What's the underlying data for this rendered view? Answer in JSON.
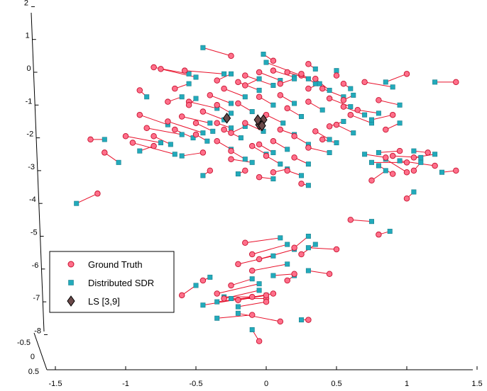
{
  "chart_data": {
    "type": "scatter",
    "projection": "3d",
    "x_ticks": [
      "-1.5",
      "-1",
      "-0.5",
      "0",
      "0.5",
      "1",
      "1.5"
    ],
    "y_ticks": [
      "-0.5",
      "0",
      "0.5"
    ],
    "z_ticks": [
      "2",
      "1",
      "0",
      "-1",
      "-2",
      "-3",
      "-4",
      "-5",
      "-6",
      "-7",
      "-8"
    ],
    "xlim": [
      -1.5,
      1.5
    ],
    "ylim": [
      -0.5,
      0.5
    ],
    "zlim": [
      -8,
      2
    ],
    "grid": false,
    "legend_position": "lower-left",
    "series": [
      {
        "name": "Ground Truth",
        "marker": "circle",
        "color": "#ff6f8a",
        "edge": "#c8102e"
      },
      {
        "name": "Distributed SDR",
        "marker": "square",
        "color": "#22aabb",
        "edge": "#1a7f8c"
      },
      {
        "name": "LS [3,9]",
        "marker": "diamond",
        "color": "#6b4a4a",
        "edge": "#000000"
      }
    ],
    "ls_points": [
      [
        -0.28,
        -1.4
      ],
      [
        -0.05,
        -1.6
      ],
      [
        -0.02,
        -1.45
      ],
      [
        -0.03,
        -1.63
      ],
      [
        -0.06,
        -1.45
      ]
    ],
    "pairs": [
      {
        "gt": [
          -0.75,
          0.1
        ],
        "sdr": [
          -0.5,
          -0.15
        ]
      },
      {
        "gt": [
          -0.58,
          0.05
        ],
        "sdr": [
          -0.3,
          -0.05
        ]
      },
      {
        "gt": [
          -0.8,
          0.15
        ],
        "sdr": [
          -0.55,
          -0.05
        ]
      },
      {
        "gt": [
          -0.25,
          0.5
        ],
        "sdr": [
          -0.45,
          0.75
        ]
      },
      {
        "gt": [
          0.25,
          -0.1
        ],
        "sdr": [
          0.0,
          0.3
        ]
      },
      {
        "gt": [
          -1.15,
          -2.45
        ],
        "sdr": [
          -1.05,
          -2.75
        ]
      },
      {
        "gt": [
          -1.25,
          -2.05
        ],
        "sdr": [
          -1.15,
          -2.05
        ]
      },
      {
        "gt": [
          -1.2,
          -3.7
        ],
        "sdr": [
          -1.35,
          -4.0
        ]
      },
      {
        "gt": [
          -0.95,
          -2.15
        ],
        "sdr": [
          -0.65,
          -2.5
        ]
      },
      {
        "gt": [
          -1.0,
          -1.95
        ],
        "sdr": [
          -0.75,
          -2.15
        ]
      },
      {
        "gt": [
          -0.85,
          -1.7
        ],
        "sdr": [
          -0.6,
          -1.9
        ]
      },
      {
        "gt": [
          -0.7,
          -1.5
        ],
        "sdr": [
          -0.45,
          -1.85
        ]
      },
      {
        "gt": [
          -0.6,
          -1.35
        ],
        "sdr": [
          -0.4,
          -1.55
        ]
      },
      {
        "gt": [
          -0.45,
          -1.2
        ],
        "sdr": [
          -0.3,
          -1.45
        ]
      },
      {
        "gt": [
          -0.9,
          -1.3
        ],
        "sdr": [
          -0.7,
          -1.6
        ]
      },
      {
        "gt": [
          -0.55,
          -0.9
        ],
        "sdr": [
          -0.35,
          -1.1
        ]
      },
      {
        "gt": [
          -0.4,
          -0.7
        ],
        "sdr": [
          -0.25,
          -0.95
        ]
      },
      {
        "gt": [
          -0.3,
          -0.5
        ],
        "sdr": [
          -0.15,
          -0.75
        ]
      },
      {
        "gt": [
          -0.2,
          -0.3
        ],
        "sdr": [
          -0.05,
          -0.55
        ]
      },
      {
        "gt": [
          -0.15,
          -0.1
        ],
        "sdr": [
          0.05,
          -0.4
        ]
      },
      {
        "gt": [
          -0.05,
          0.0
        ],
        "sdr": [
          0.1,
          -0.25
        ]
      },
      {
        "gt": [
          0.05,
          0.05
        ],
        "sdr": [
          0.2,
          -0.15
        ]
      },
      {
        "gt": [
          0.15,
          0.0
        ],
        "sdr": [
          0.3,
          -0.2
        ]
      },
      {
        "gt": [
          0.25,
          -0.05
        ],
        "sdr": [
          0.35,
          -0.35
        ]
      },
      {
        "gt": [
          0.35,
          -0.2
        ],
        "sdr": [
          0.45,
          -0.55
        ]
      },
      {
        "gt": [
          0.4,
          -0.5
        ],
        "sdr": [
          0.55,
          -0.75
        ]
      },
      {
        "gt": [
          0.45,
          -0.8
        ],
        "sdr": [
          0.6,
          -1.05
        ]
      },
      {
        "gt": [
          0.55,
          -1.05
        ],
        "sdr": [
          0.7,
          -1.3
        ]
      },
      {
        "gt": [
          0.6,
          -1.3
        ],
        "sdr": [
          0.75,
          -1.55
        ]
      },
      {
        "gt": [
          0.5,
          -1.6
        ],
        "sdr": [
          0.62,
          -1.85
        ]
      },
      {
        "gt": [
          0.35,
          -1.8
        ],
        "sdr": [
          0.45,
          -2.05
        ]
      },
      {
        "gt": [
          0.2,
          -1.95
        ],
        "sdr": [
          0.3,
          -2.2
        ]
      },
      {
        "gt": [
          0.05,
          -2.1
        ],
        "sdr": [
          0.15,
          -2.35
        ]
      },
      {
        "gt": [
          -0.1,
          -2.25
        ],
        "sdr": [
          0.0,
          -2.5
        ]
      },
      {
        "gt": [
          -0.25,
          -2.4
        ],
        "sdr": [
          -0.15,
          -2.65
        ]
      },
      {
        "gt": [
          -0.35,
          -2.1
        ],
        "sdr": [
          -0.25,
          -2.35
        ]
      },
      {
        "gt": [
          -0.3,
          -1.75
        ],
        "sdr": [
          -0.18,
          -2.0
        ]
      },
      {
        "gt": [
          -0.15,
          -1.55
        ],
        "sdr": [
          -0.02,
          -1.8
        ]
      },
      {
        "gt": [
          0.0,
          -1.3
        ],
        "sdr": [
          0.12,
          -1.55
        ]
      },
      {
        "gt": [
          0.15,
          -1.1
        ],
        "sdr": [
          0.25,
          -1.35
        ]
      },
      {
        "gt": [
          0.3,
          -0.9
        ],
        "sdr": [
          0.4,
          -1.15
        ]
      },
      {
        "gt": [
          0.1,
          -0.7
        ],
        "sdr": [
          0.2,
          -0.95
        ]
      },
      {
        "gt": [
          -0.05,
          -0.75
        ],
        "sdr": [
          0.05,
          -1.0
        ]
      },
      {
        "gt": [
          -0.2,
          -0.95
        ],
        "sdr": [
          -0.1,
          -1.2
        ]
      },
      {
        "gt": [
          -0.35,
          -1.0
        ],
        "sdr": [
          -0.25,
          -1.25
        ]
      },
      {
        "gt": [
          -0.5,
          -1.55
        ],
        "sdr": [
          -0.38,
          -1.8
        ]
      },
      {
        "gt": [
          -0.65,
          -1.75
        ],
        "sdr": [
          -0.52,
          -2.0
        ]
      },
      {
        "gt": [
          -0.8,
          -1.95
        ],
        "sdr": [
          -0.68,
          -2.2
        ]
      },
      {
        "gt": [
          0.0,
          -2.55
        ],
        "sdr": [
          0.1,
          -2.8
        ]
      },
      {
        "gt": [
          0.2,
          -2.6
        ],
        "sdr": [
          0.3,
          -2.8
        ]
      },
      {
        "gt": [
          0.25,
          -3.4
        ],
        "sdr": [
          0.3,
          -3.45
        ]
      },
      {
        "gt": [
          -0.05,
          -2.2
        ],
        "sdr": [
          0.05,
          -2.45
        ]
      },
      {
        "gt": [
          0.7,
          -0.3
        ],
        "sdr": [
          0.9,
          -0.45
        ]
      },
      {
        "gt": [
          0.8,
          -0.85
        ],
        "sdr": [
          0.95,
          -1.0
        ]
      },
      {
        "gt": [
          0.9,
          -1.3
        ],
        "sdr": [
          0.75,
          -1.45
        ]
      },
      {
        "gt": [
          0.85,
          -1.75
        ],
        "sdr": [
          0.95,
          -1.55
        ]
      },
      {
        "gt": [
          1.0,
          -0.05
        ],
        "sdr": [
          0.85,
          -0.3
        ]
      },
      {
        "gt": [
          1.35,
          -0.3
        ],
        "sdr": [
          1.2,
          -0.3
        ]
      },
      {
        "gt": [
          1.2,
          -2.85
        ],
        "sdr": [
          0.95,
          -2.7
        ]
      },
      {
        "gt": [
          1.35,
          -3.0
        ],
        "sdr": [
          1.25,
          -3.05
        ]
      },
      {
        "gt": [
          0.75,
          -3.3
        ],
        "sdr": [
          0.85,
          -3.0
        ]
      },
      {
        "gt": [
          0.9,
          -3.1
        ],
        "sdr": [
          0.8,
          -2.85
        ]
      },
      {
        "gt": [
          1.0,
          -3.05
        ],
        "sdr": [
          0.85,
          -2.65
        ]
      },
      {
        "gt": [
          0.6,
          -4.5
        ],
        "sdr": [
          0.75,
          -4.55
        ]
      },
      {
        "gt": [
          0.8,
          -4.95
        ],
        "sdr": [
          0.88,
          -4.85
        ]
      },
      {
        "gt": [
          1.0,
          -3.85
        ],
        "sdr": [
          1.05,
          -3.65
        ]
      },
      {
        "gt": [
          1.05,
          -3.0
        ],
        "sdr": [
          1.1,
          -2.75
        ]
      },
      {
        "gt": [
          0.65,
          -1.15
        ],
        "sdr": [
          0.8,
          -1.25
        ]
      },
      {
        "gt": [
          0.55,
          -0.85
        ],
        "sdr": [
          0.62,
          -0.7
        ]
      },
      {
        "gt": [
          0.45,
          -1.65
        ],
        "sdr": [
          0.55,
          -1.5
        ]
      },
      {
        "gt": [
          -0.15,
          -5.2
        ],
        "sdr": [
          0.1,
          -5.05
        ]
      },
      {
        "gt": [
          -0.1,
          -5.55
        ],
        "sdr": [
          0.15,
          -5.25
        ]
      },
      {
        "gt": [
          -0.05,
          -5.7
        ],
        "sdr": [
          0.2,
          -5.4
        ]
      },
      {
        "gt": [
          -0.2,
          -5.85
        ],
        "sdr": [
          0.05,
          -5.6
        ]
      },
      {
        "gt": [
          0.2,
          -5.35
        ],
        "sdr": [
          0.3,
          -5.0
        ]
      },
      {
        "gt": [
          -0.1,
          -6.05
        ],
        "sdr": [
          0.15,
          -5.85
        ]
      },
      {
        "gt": [
          0.25,
          -5.55
        ],
        "sdr": [
          0.35,
          -5.25
        ]
      },
      {
        "gt": [
          0.2,
          -6.15
        ],
        "sdr": [
          0.05,
          -6.2
        ]
      },
      {
        "gt": [
          -0.25,
          -6.5
        ],
        "sdr": [
          -0.1,
          -6.3
        ]
      },
      {
        "gt": [
          -0.35,
          -6.75
        ],
        "sdr": [
          -0.05,
          -6.45
        ]
      },
      {
        "gt": [
          -0.3,
          -6.9
        ],
        "sdr": [
          -0.05,
          -6.65
        ]
      },
      {
        "gt": [
          -0.2,
          -6.95
        ],
        "sdr": [
          0.0,
          -6.8
        ]
      },
      {
        "gt": [
          -0.1,
          -6.85
        ],
        "sdr": [
          -0.3,
          -6.85
        ]
      },
      {
        "gt": [
          0.0,
          -6.9
        ],
        "sdr": [
          -0.25,
          -6.9
        ]
      },
      {
        "gt": [
          0.0,
          -6.8
        ],
        "sdr": [
          -0.35,
          -7.0
        ]
      },
      {
        "gt": [
          0.05,
          -6.75
        ],
        "sdr": [
          -0.45,
          -7.1
        ]
      },
      {
        "gt": [
          0.0,
          -7.0
        ],
        "sdr": [
          -0.2,
          -7.15
        ]
      },
      {
        "gt": [
          -0.1,
          -7.4
        ],
        "sdr": [
          -0.35,
          -7.5
        ]
      },
      {
        "gt": [
          0.1,
          -7.6
        ],
        "sdr": [
          -0.2,
          -7.35
        ]
      },
      {
        "gt": [
          0.3,
          -7.55
        ],
        "sdr": [
          0.25,
          -7.55
        ]
      },
      {
        "gt": [
          -0.05,
          -8.2
        ],
        "sdr": [
          -0.1,
          -7.85
        ]
      },
      {
        "gt": [
          0.45,
          -6.15
        ],
        "sdr": [
          0.3,
          -6.05
        ]
      },
      {
        "gt": [
          0.5,
          -5.4
        ],
        "sdr": [
          0.3,
          -5.35
        ]
      },
      {
        "gt": [
          -0.45,
          -6.35
        ],
        "sdr": [
          -0.4,
          -6.25
        ]
      },
      {
        "gt": [
          -0.6,
          -6.8
        ],
        "sdr": [
          -0.5,
          -6.5
        ]
      },
      {
        "gt": [
          0.15,
          -6.35
        ],
        "sdr": [
          0.2,
          -6.2
        ]
      },
      {
        "gt": [
          -0.55,
          -1.0
        ],
        "sdr": [
          -0.5,
          -0.8
        ]
      },
      {
        "gt": [
          -0.7,
          -0.9
        ],
        "sdr": [
          -0.6,
          -0.75
        ]
      },
      {
        "gt": [
          -0.5,
          -1.9
        ],
        "sdr": [
          -0.42,
          -2.1
        ]
      },
      {
        "gt": [
          -0.25,
          -2.65
        ],
        "sdr": [
          -0.1,
          -2.75
        ]
      },
      {
        "gt": [
          -0.15,
          -3.0
        ],
        "sdr": [
          -0.2,
          -3.1
        ]
      },
      {
        "gt": [
          0.05,
          -3.05
        ],
        "sdr": [
          0.15,
          -2.95
        ]
      },
      {
        "gt": [
          -0.4,
          -3.0
        ],
        "sdr": [
          -0.45,
          -3.15
        ]
      },
      {
        "gt": [
          -0.15,
          -0.4
        ],
        "sdr": [
          -0.05,
          -0.2
        ]
      },
      {
        "gt": [
          0.1,
          -0.35
        ],
        "sdr": [
          0.2,
          -0.2
        ]
      },
      {
        "gt": [
          0.3,
          -0.5
        ],
        "sdr": [
          0.38,
          -0.35
        ]
      },
      {
        "gt": [
          0.55,
          -0.35
        ],
        "sdr": [
          0.6,
          -0.5
        ]
      },
      {
        "gt": [
          0.5,
          -0.1
        ],
        "sdr": [
          0.5,
          0.05
        ]
      },
      {
        "gt": [
          -0.35,
          -0.25
        ],
        "sdr": [
          -0.25,
          -0.05
        ]
      },
      {
        "gt": [
          0.05,
          0.35
        ],
        "sdr": [
          -0.02,
          0.55
        ]
      },
      {
        "gt": [
          0.3,
          0.25
        ],
        "sdr": [
          0.35,
          0.1
        ]
      },
      {
        "gt": [
          -0.65,
          -0.5
        ],
        "sdr": [
          -0.55,
          -0.35
        ]
      },
      {
        "gt": [
          -0.9,
          -0.55
        ],
        "sdr": [
          -0.85,
          -0.75
        ]
      },
      {
        "gt": [
          -0.25,
          -1.85
        ],
        "sdr": [
          -0.15,
          -1.65
        ]
      },
      {
        "gt": [
          -0.35,
          -1.55
        ],
        "sdr": [
          -0.25,
          -1.7
        ]
      },
      {
        "gt": [
          0.1,
          -1.75
        ],
        "sdr": [
          0.2,
          -1.9
        ]
      },
      {
        "gt": [
          0.4,
          -2.05
        ],
        "sdr": [
          0.5,
          -2.15
        ]
      },
      {
        "gt": [
          0.3,
          -2.3
        ],
        "sdr": [
          0.45,
          -2.45
        ]
      },
      {
        "gt": [
          0.95,
          -2.4
        ],
        "sdr": [
          0.8,
          -2.45
        ]
      },
      {
        "gt": [
          1.15,
          -2.45
        ],
        "sdr": [
          1.05,
          -2.4
        ]
      },
      {
        "gt": [
          0.9,
          -2.55
        ],
        "sdr": [
          1.1,
          -2.6
        ]
      },
      {
        "gt": [
          1.0,
          -2.75
        ],
        "sdr": [
          0.75,
          -2.75
        ]
      },
      {
        "gt": [
          0.85,
          -2.6
        ],
        "sdr": [
          0.7,
          -2.5
        ]
      },
      {
        "gt": [
          1.05,
          -2.6
        ],
        "sdr": [
          1.2,
          -2.5
        ]
      },
      {
        "gt": [
          -0.45,
          -2.45
        ],
        "sdr": [
          -0.6,
          -2.55
        ]
      },
      {
        "gt": [
          -0.8,
          -2.25
        ],
        "sdr": [
          -0.9,
          -2.4
        ]
      },
      {
        "gt": [
          -0.05,
          -3.2
        ],
        "sdr": [
          0.05,
          -3.25
        ]
      },
      {
        "gt": [
          0.15,
          -3.0
        ],
        "sdr": [
          0.25,
          -3.15
        ]
      }
    ]
  }
}
